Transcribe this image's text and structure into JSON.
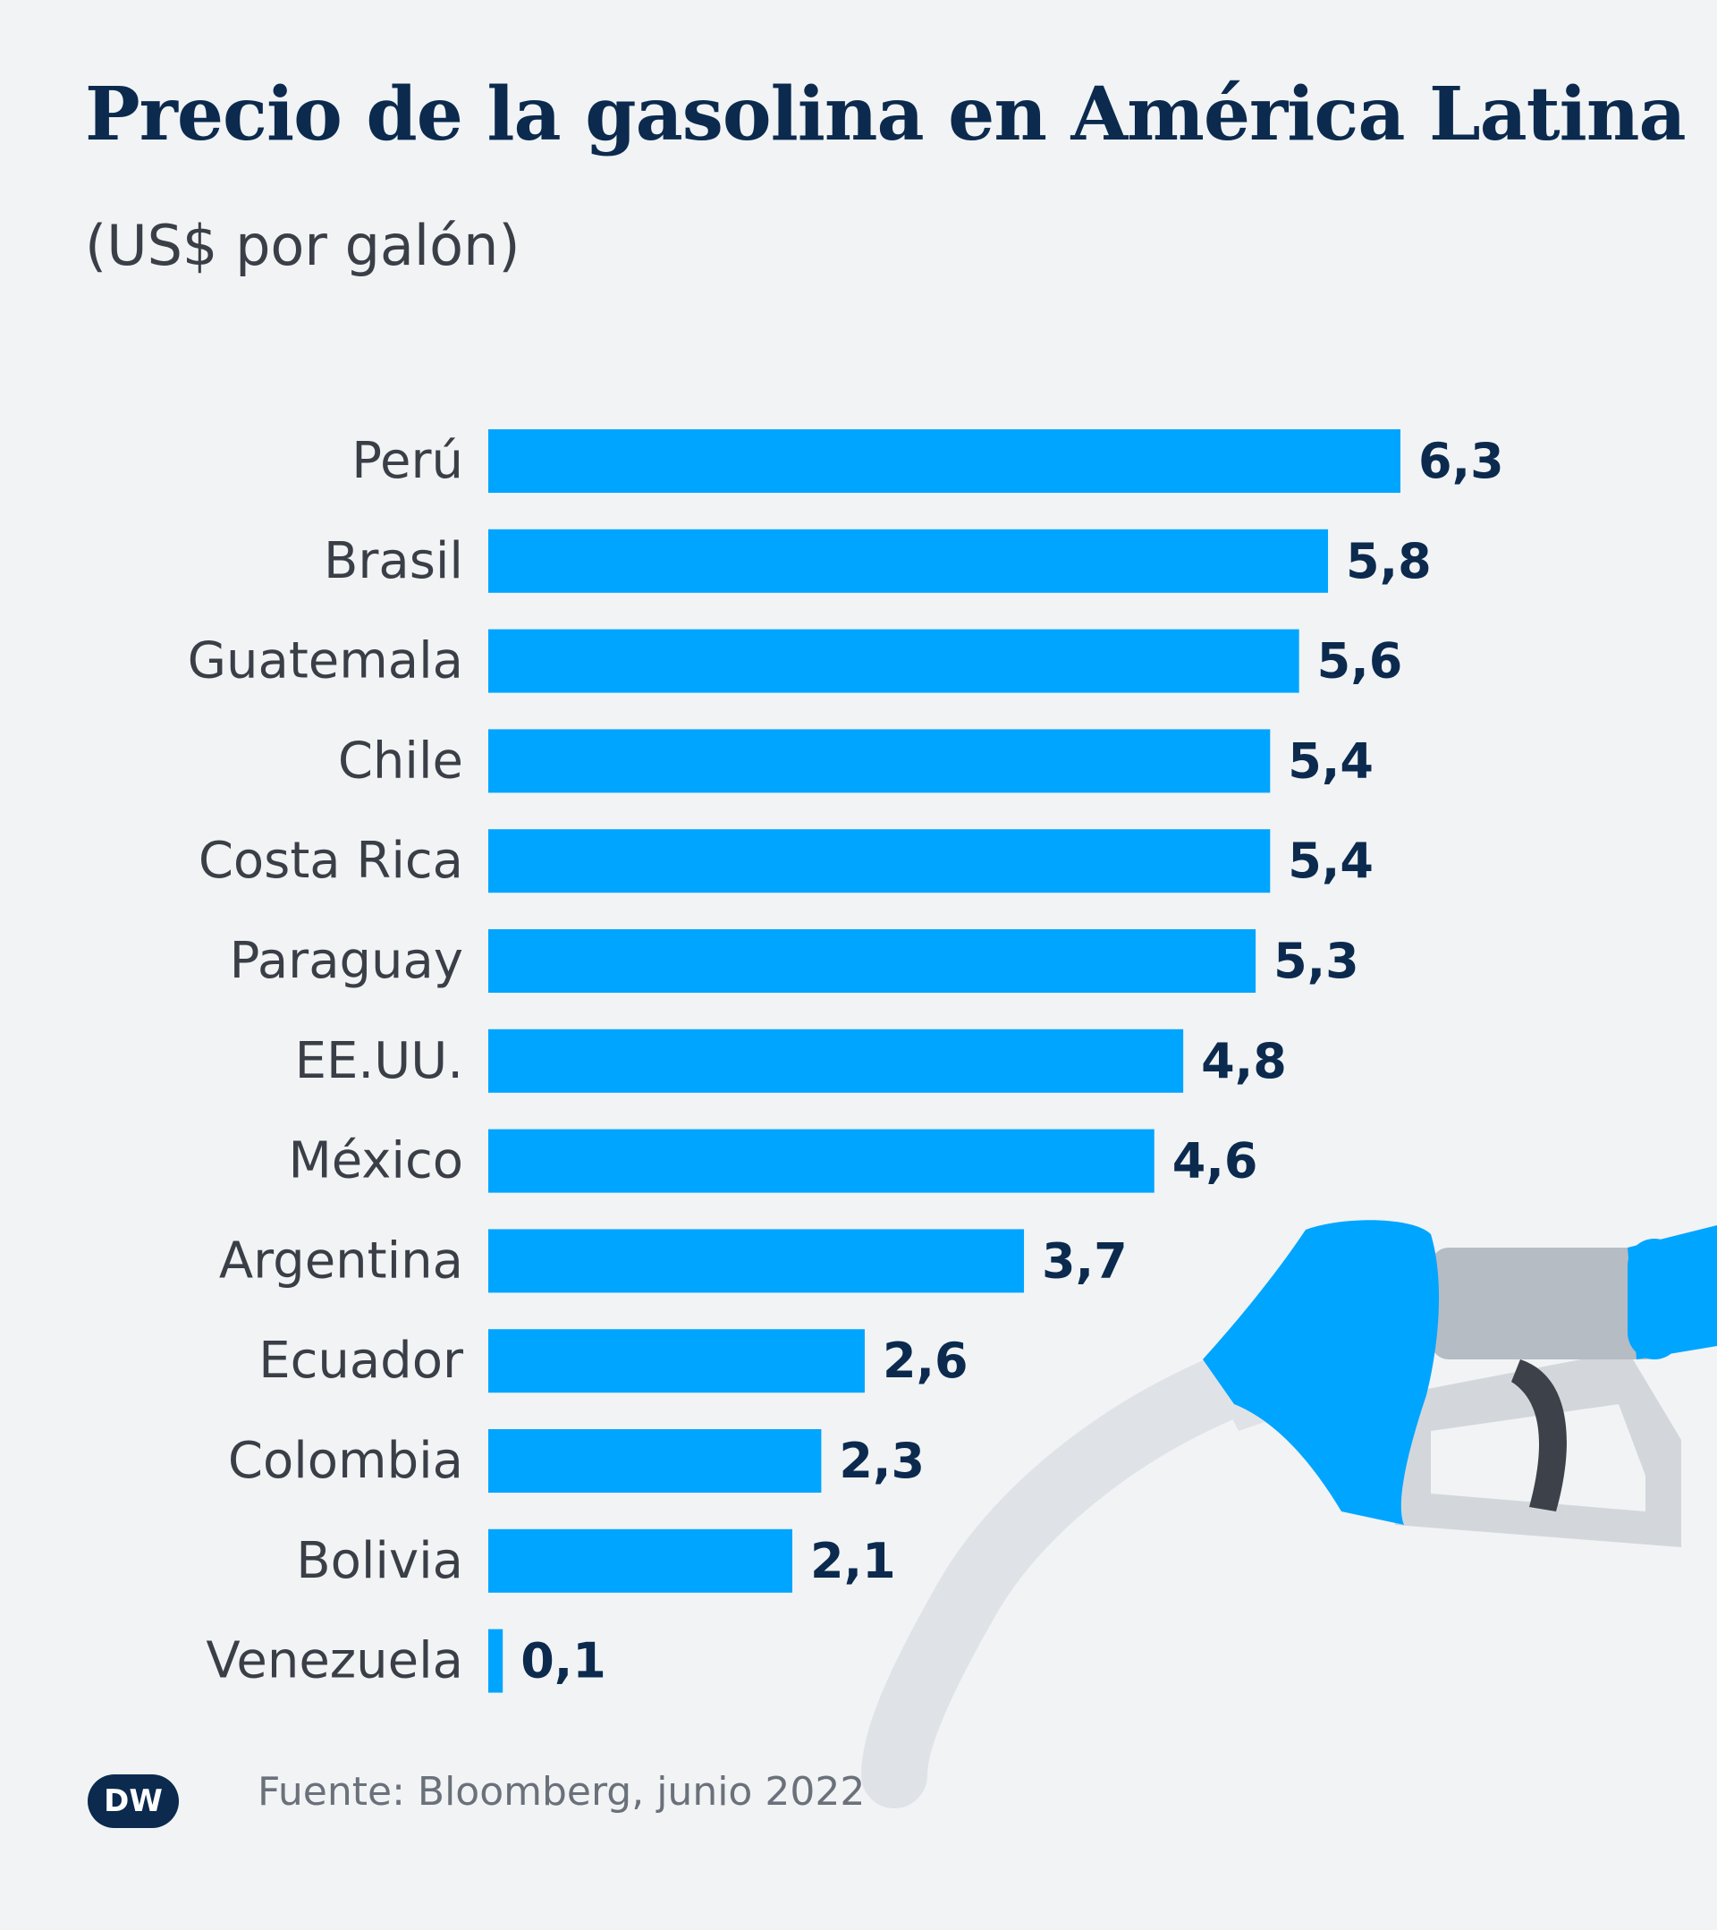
{
  "header": {
    "title": "Precio de la gasolina en América Latina",
    "subtitle": "(US$ por galón)"
  },
  "footer": {
    "source": "Fuente: Bloomberg, junio 2022",
    "logo_text": "DW"
  },
  "colors": {
    "bar": "#00a5ff",
    "label": "#3a3f47",
    "value": "#0b2a4e",
    "background": "#f1f3f5"
  },
  "chart_data": {
    "type": "bar",
    "orientation": "horizontal",
    "categories": [
      "Perú",
      "Brasil",
      "Guatemala",
      "Chile",
      "Costa Rica",
      "Paraguay",
      "EE.UU.",
      "México",
      "Argentina",
      "Ecuador",
      "Colombia",
      "Bolivia",
      "Venezuela"
    ],
    "values": [
      6.3,
      5.8,
      5.6,
      5.4,
      5.4,
      5.3,
      4.8,
      4.6,
      3.7,
      2.6,
      2.3,
      2.1,
      0.1
    ],
    "value_labels": [
      "6,3",
      "5,8",
      "5,6",
      "5,4",
      "5,4",
      "5,3",
      "4,8",
      "4,6",
      "3,7",
      "2,6",
      "2,3",
      "2,1",
      "0,1"
    ],
    "title": "Precio de la gasolina en América Latina",
    "subtitle": "(US$ por galón)",
    "xlim": [
      0,
      6.3
    ],
    "grid": false,
    "legend": "none"
  }
}
